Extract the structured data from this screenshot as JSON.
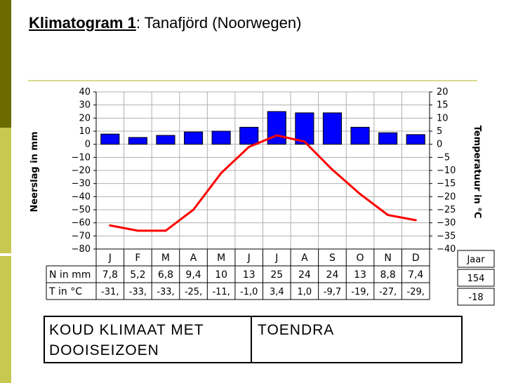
{
  "slide": {
    "title_bold": "Klimatogram 1",
    "title_rest": ": Tanafjörd (Noorwegen)",
    "accent_colors": [
      "#6b6b00",
      "#c8c850",
      "#d9d98c"
    ]
  },
  "chart_data": {
    "type": "bar+line",
    "ylabel_left": "Neerslag in mm",
    "ylabel_right": "Temperatuur in °C",
    "left_ylim": [
      -80,
      40
    ],
    "left_ticks": [
      "40",
      "30",
      "20",
      "10",
      "0",
      "−10",
      "−20",
      "−30",
      "−40",
      "−50",
      "−60",
      "−70",
      "−80"
    ],
    "right_ylim": [
      -40,
      20
    ],
    "right_ticks": [
      "20",
      "15",
      "10",
      "5",
      "0",
      "−5",
      "−10",
      "−15",
      "−20",
      "−25",
      "−30",
      "−35",
      "−40"
    ],
    "categories": [
      "J",
      "F",
      "M",
      "A",
      "M",
      "J",
      "J",
      "A",
      "S",
      "O",
      "N",
      "D"
    ],
    "precip_values": [
      7.8,
      5.2,
      6.8,
      9.4,
      10,
      13,
      25,
      24,
      24,
      13,
      8.8,
      7.4
    ],
    "temp_values": [
      -31,
      -33,
      -33,
      -25,
      -11,
      -1.0,
      3.4,
      1.0,
      -9.7,
      -19,
      -27,
      -29
    ],
    "precip_color": "#0000ff",
    "temp_color": "#ff0000",
    "grid": true,
    "table": {
      "row1_label": "N in mm",
      "row2_label": "T in °C",
      "row1": [
        "7,8",
        "5,2",
        "6,8",
        "9,4",
        "10",
        "13",
        "25",
        "24",
        "24",
        "13",
        "8,8",
        "7,4"
      ],
      "row2": [
        "-31,",
        "-33,",
        "-33,",
        "-25,",
        "-11,",
        "-1,0",
        "3,4",
        "1,0",
        "-9,7",
        "-19,",
        "-27,",
        "-29,"
      ],
      "jaar_label": "Jaar",
      "jaar_precip": "154",
      "jaar_temp": "-18"
    }
  },
  "classification": {
    "left": "KOUD KLIMAAT MET DOOISEIZOEN",
    "right": "TOENDRA"
  }
}
